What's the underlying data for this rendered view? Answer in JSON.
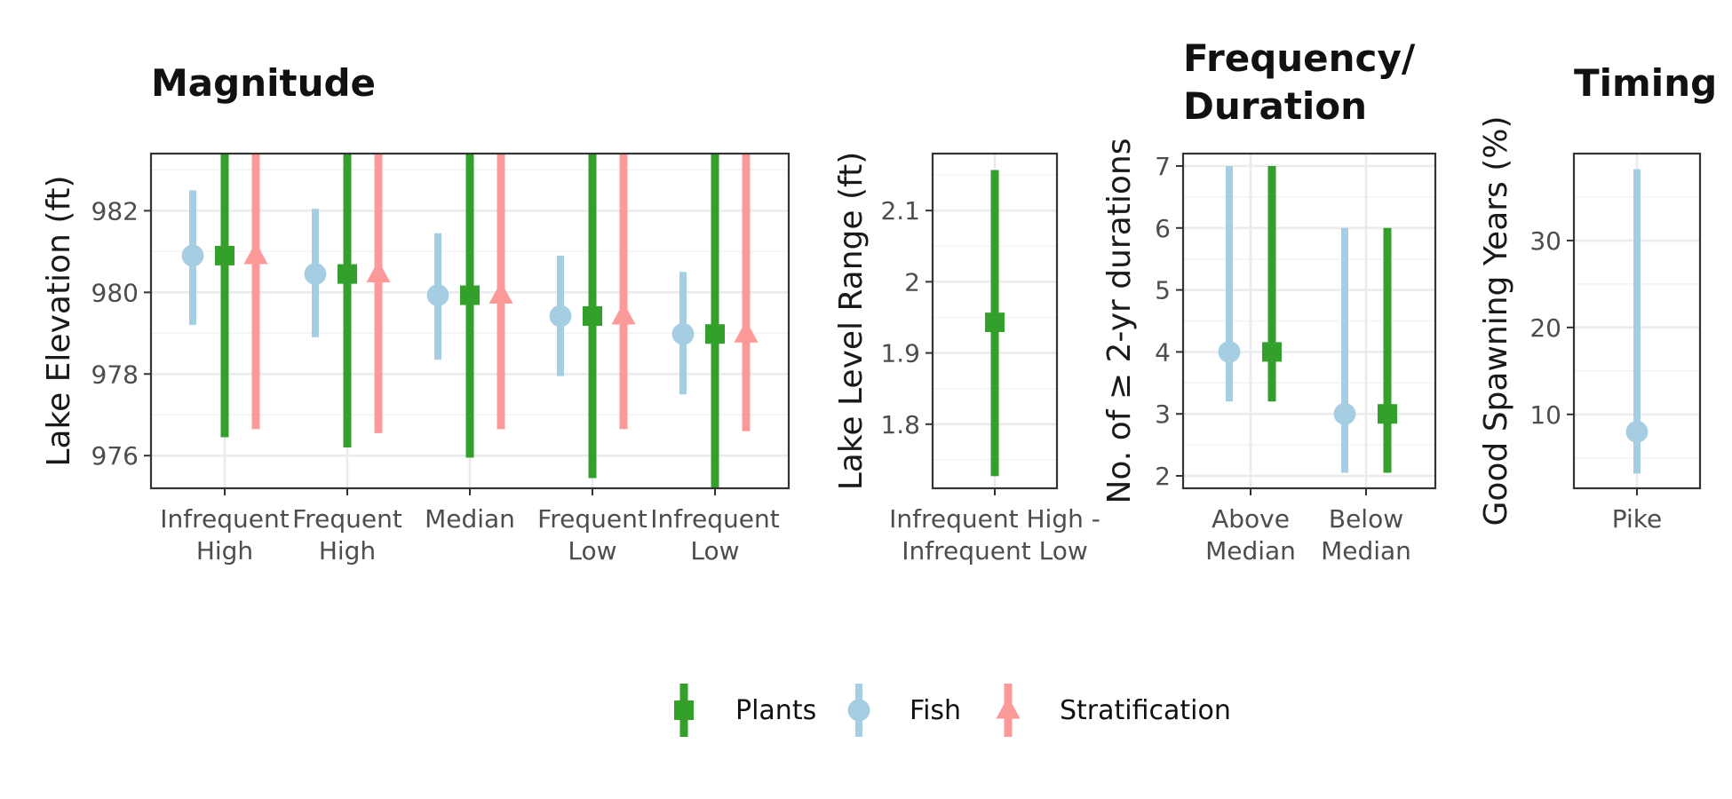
{
  "chart_data": [
    {
      "type": "point-range",
      "title": "Magnitude",
      "xlabel": "",
      "ylabel": "Lake Elevation (ft)",
      "categories": [
        "Infrequent\nHigh",
        "Frequent\nHigh",
        "Median",
        "Frequent\nLow",
        "Infrequent\nLow"
      ],
      "y_ticks": [
        976,
        978,
        980,
        982
      ],
      "ylim": [
        975.2,
        983.4
      ],
      "grid": true,
      "series": [
        {
          "name": "Fish",
          "points": [
            {
              "y": 980.9,
              "low": 979.2,
              "high": 982.5
            },
            {
              "y": 980.45,
              "low": 978.9,
              "high": 982.05
            },
            {
              "y": 979.93,
              "low": 978.35,
              "high": 981.45
            },
            {
              "y": 979.42,
              "low": 977.95,
              "high": 980.9
            },
            {
              "y": 978.98,
              "low": 977.5,
              "high": 980.5
            }
          ]
        },
        {
          "name": "Plants",
          "points": [
            {
              "y": 980.9,
              "low": 976.45,
              "high": 983.4
            },
            {
              "y": 980.45,
              "low": 976.2,
              "high": 983.4
            },
            {
              "y": 979.93,
              "low": 975.95,
              "high": 983.4
            },
            {
              "y": 979.42,
              "low": 975.45,
              "high": 983.4
            },
            {
              "y": 978.98,
              "low": 975.2,
              "high": 983.4
            }
          ]
        },
        {
          "name": "Stratification",
          "points": [
            {
              "y": 980.9,
              "low": 976.65,
              "high": 983.4
            },
            {
              "y": 980.45,
              "low": 976.55,
              "high": 983.4
            },
            {
              "y": 979.93,
              "low": 976.65,
              "high": 983.4
            },
            {
              "y": 979.42,
              "low": 976.65,
              "high": 983.4
            },
            {
              "y": 978.98,
              "low": 976.6,
              "high": 983.4
            }
          ]
        }
      ]
    },
    {
      "type": "point-range",
      "title": "",
      "xlabel": "",
      "ylabel": "Lake Level Range (ft)",
      "categories": [
        "Infrequent High -\nInfrequent Low"
      ],
      "y_ticks": [
        1.8,
        1.9,
        2.0,
        2.1
      ],
      "ylim": [
        1.71,
        2.18
      ],
      "grid": true,
      "series": [
        {
          "name": "Plants",
          "points": [
            {
              "y": 1.943,
              "low": 1.727,
              "high": 2.157
            }
          ]
        }
      ]
    },
    {
      "type": "point-range",
      "title": "Frequency/\nDuration",
      "xlabel": "",
      "ylabel": "No. of ≥ 2-yr durations",
      "categories": [
        "Above\nMedian",
        "Below\nMedian"
      ],
      "y_ticks": [
        2,
        3,
        4,
        5,
        6,
        7
      ],
      "ylim": [
        1.8,
        7.2
      ],
      "grid": true,
      "series": [
        {
          "name": "Fish",
          "points": [
            {
              "y": 4,
              "low": 3.2,
              "high": 7
            },
            {
              "y": 3,
              "low": 2.05,
              "high": 6
            }
          ]
        },
        {
          "name": "Plants",
          "points": [
            {
              "y": 4,
              "low": 3.2,
              "high": 7
            },
            {
              "y": 3,
              "low": 2.05,
              "high": 6
            }
          ]
        }
      ]
    },
    {
      "type": "point-range",
      "title": "Timing",
      "xlabel": "",
      "ylabel": "Good Spawning Years (%)",
      "categories": [
        "Pike"
      ],
      "y_ticks": [
        10,
        20,
        30
      ],
      "ylim": [
        1.5,
        40
      ],
      "grid": true,
      "series": [
        {
          "name": "Fish",
          "points": [
            {
              "y": 8,
              "low": 3.2,
              "high": 38.2
            }
          ]
        }
      ]
    }
  ],
  "legend": {
    "position": "bottom",
    "items": [
      {
        "name": "Plants",
        "shape": "square",
        "color": "#33a02c"
      },
      {
        "name": "Fish",
        "shape": "circle",
        "color": "#a6cee3"
      },
      {
        "name": "Stratification",
        "shape": "triangle",
        "color": "#fb9a99"
      }
    ]
  },
  "colors": {
    "Plants": "#33a02c",
    "Fish": "#a6cee3",
    "Stratification": "#fb9a99",
    "grid_major": "#ebebeb",
    "grid_minor": "#f3f3f3",
    "panel_border": "#333333"
  }
}
